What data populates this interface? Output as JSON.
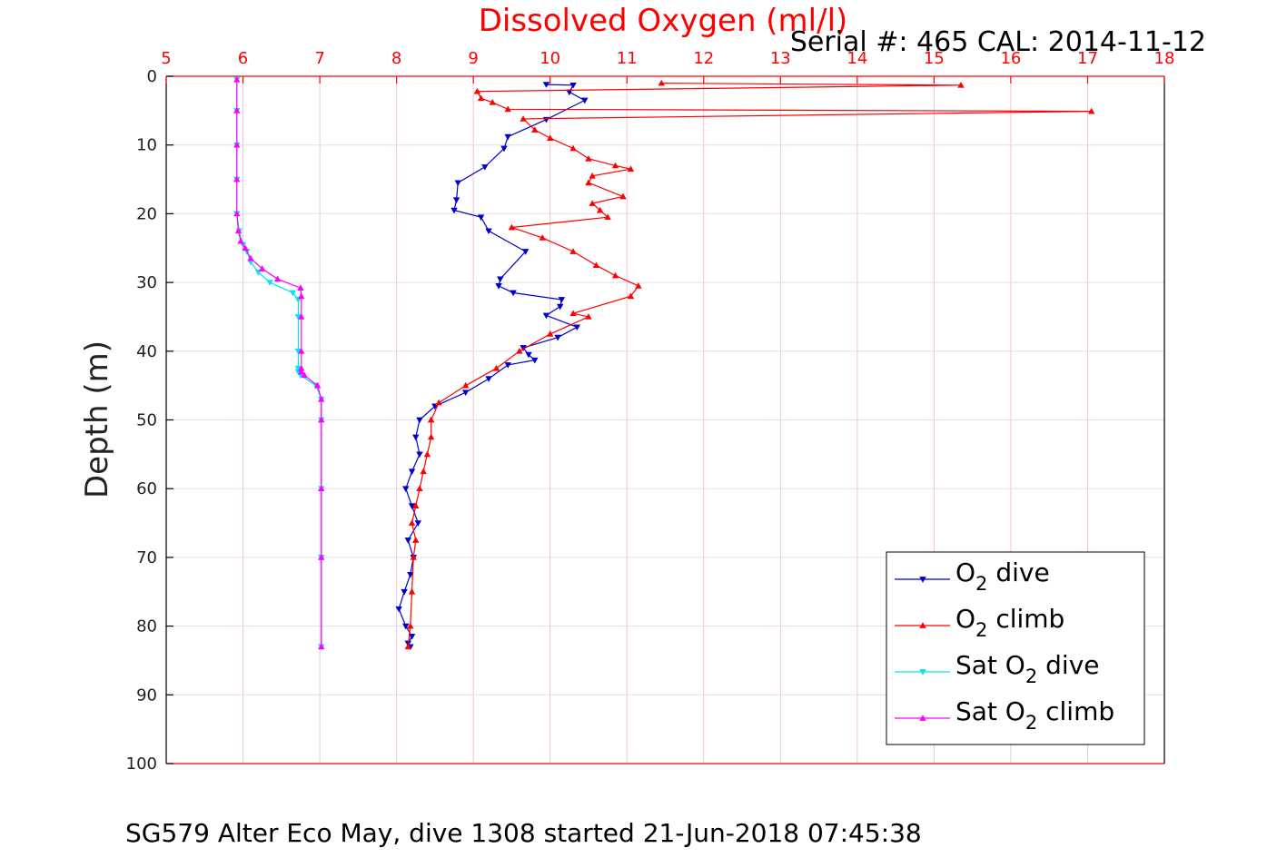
{
  "chart_data": {
    "type": "line",
    "title": "Dissolved Oxygen (ml/l)",
    "subtitle": "Serial #: 465  CAL: 2014-11-12",
    "footer": "SG579 Alter Eco May, dive 1308 started 21-Jun-2018 07:45:38",
    "xlabel": "",
    "ylabel": "Depth (m)",
    "xlim": [
      5,
      18
    ],
    "ylim": [
      0,
      100
    ],
    "y_reversed": true,
    "x_axis_position": "top",
    "x_ticks": [
      5,
      6,
      7,
      8,
      9,
      10,
      11,
      12,
      13,
      14,
      15,
      16,
      17,
      18
    ],
    "y_ticks": [
      0,
      10,
      20,
      30,
      40,
      50,
      60,
      70,
      80,
      90,
      100
    ],
    "grid": true,
    "legend_position": "bottom-right",
    "colors": {
      "title": "#ff0000",
      "x_axis": "#ff0000",
      "y_axis": "#000000",
      "grid": "#e0e0e0"
    },
    "series": [
      {
        "name": "O2 dive",
        "legend_main": "O",
        "legend_sub": "2",
        "legend_rest": " dive",
        "color": "#0000cc",
        "marker": "down-triangle",
        "x": [
          9.95,
          10.3,
          10.25,
          10.45,
          9.95,
          9.45,
          9.4,
          9.15,
          8.8,
          8.78,
          8.75,
          9.1,
          9.2,
          9.68,
          9.35,
          9.33,
          9.52,
          10.15,
          10.13,
          9.95,
          10.35,
          10.1,
          9.65,
          9.72,
          9.8,
          9.45,
          9.2,
          8.9,
          8.5,
          8.3,
          8.25,
          8.3,
          8.2,
          8.12,
          8.2,
          8.28,
          8.15,
          8.22,
          8.18,
          8.1,
          8.03,
          8.12,
          8.2,
          8.15,
          8.18
        ],
        "y": [
          1.2,
          1.3,
          2.3,
          3.5,
          6.3,
          8.8,
          10.5,
          13.2,
          15.5,
          18.0,
          19.5,
          20.5,
          22.5,
          25.5,
          29.5,
          30.5,
          31.5,
          32.5,
          33.5,
          34.8,
          36.5,
          38.0,
          39.5,
          40.5,
          41.3,
          42.0,
          44.0,
          46.0,
          48.0,
          50.0,
          52.5,
          55.0,
          57.5,
          60.0,
          62.5,
          65.0,
          67.5,
          70.0,
          72.5,
          75.0,
          77.5,
          80.0,
          81.5,
          82.5,
          83.0
        ]
      },
      {
        "name": "O2 climb",
        "legend_main": "O",
        "legend_sub": "2",
        "legend_rest": " climb",
        "color": "#ff0000",
        "marker": "up-triangle",
        "x": [
          11.45,
          15.35,
          9.05,
          9.1,
          9.25,
          9.45,
          17.05,
          9.65,
          9.8,
          10.0,
          10.3,
          10.5,
          10.85,
          11.05,
          10.55,
          10.5,
          10.95,
          10.55,
          10.65,
          10.75,
          9.5,
          9.9,
          10.3,
          10.6,
          10.85,
          11.15,
          11.05,
          10.3,
          10.5,
          10.0,
          9.6,
          9.3,
          8.9,
          8.55,
          8.45,
          8.45,
          8.4,
          8.35,
          8.3,
          8.25,
          8.2,
          8.25,
          8.22,
          8.2,
          8.18,
          8.15
        ],
        "y": [
          1.0,
          1.3,
          2.2,
          3.2,
          3.8,
          4.8,
          5.1,
          6.2,
          7.8,
          9.0,
          10.5,
          12.0,
          13.0,
          13.5,
          14.5,
          15.5,
          17.5,
          18.5,
          19.5,
          20.5,
          22.0,
          23.5,
          25.5,
          27.5,
          29.0,
          30.5,
          32.0,
          34.5,
          35.0,
          37.5,
          40.0,
          42.5,
          45.0,
          47.5,
          50.0,
          52.5,
          55.0,
          57.5,
          60.0,
          62.5,
          65.0,
          67.5,
          70.0,
          75.0,
          80.0,
          83.0
        ]
      },
      {
        "name": "Sat O2 dive",
        "legend_main": "Sat O",
        "legend_sub": "2",
        "legend_rest": " dive",
        "color": "#00e5ee",
        "marker": "down-triangle",
        "x": [
          5.92,
          5.92,
          5.92,
          5.92,
          5.92,
          5.95,
          6.0,
          6.05,
          6.1,
          6.2,
          6.35,
          6.65,
          6.72,
          6.72,
          6.72,
          6.72,
          6.72,
          6.75,
          6.95,
          7.02,
          7.02,
          7.02,
          7.02,
          7.02
        ],
        "y": [
          0.5,
          5.0,
          10.0,
          15.0,
          20.0,
          22.5,
          24.5,
          25.5,
          27.0,
          28.5,
          30.0,
          31.5,
          32.5,
          35.0,
          40.0,
          42.5,
          43.0,
          43.5,
          45.0,
          47.0,
          50.0,
          60.0,
          70.0,
          83.0
        ]
      },
      {
        "name": "Sat O2 climb",
        "legend_main": "Sat O",
        "legend_sub": "2",
        "legend_rest": " climb",
        "color": "#ff00ff",
        "marker": "up-triangle",
        "x": [
          5.92,
          5.92,
          5.92,
          5.92,
          5.92,
          5.94,
          5.97,
          6.03,
          6.1,
          6.25,
          6.45,
          6.75,
          6.76,
          6.76,
          6.76,
          6.76,
          6.76,
          6.8,
          6.97,
          7.02,
          7.02,
          7.02,
          7.02,
          7.02
        ],
        "y": [
          0.5,
          5.0,
          10.0,
          15.0,
          20.0,
          22.5,
          24.0,
          25.0,
          26.5,
          28.0,
          29.5,
          30.8,
          32.0,
          35.0,
          40.0,
          42.5,
          43.0,
          43.5,
          45.0,
          47.0,
          50.0,
          60.0,
          70.0,
          83.0
        ]
      }
    ]
  }
}
